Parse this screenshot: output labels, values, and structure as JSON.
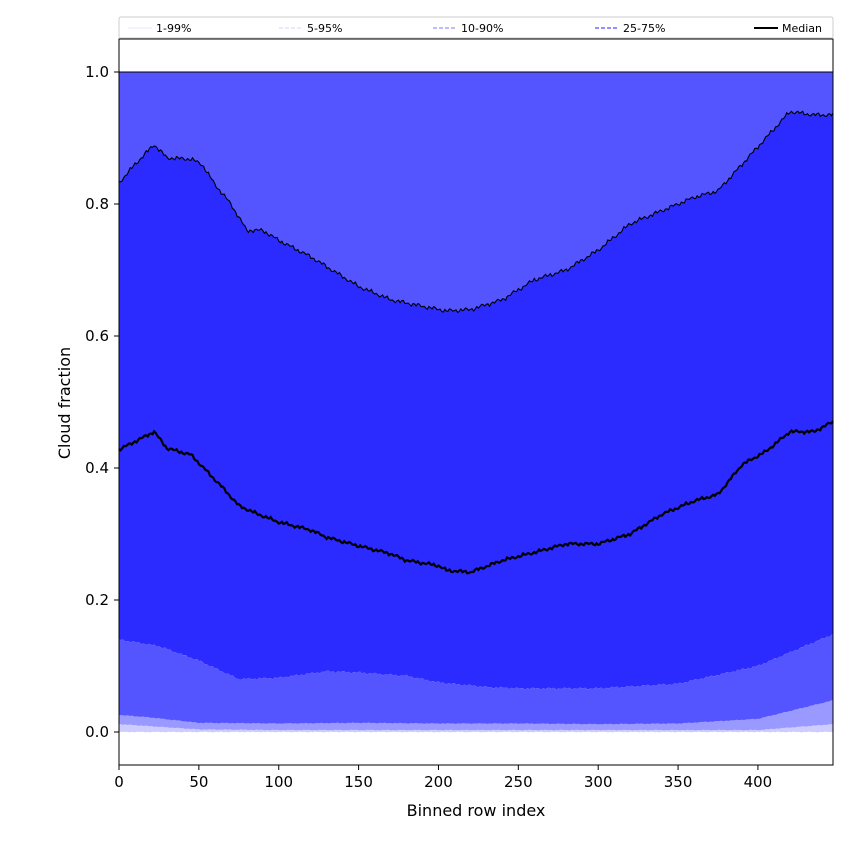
{
  "chart_data": {
    "type": "area",
    "xlabel": "Binned row index",
    "ylabel": "Cloud fraction",
    "xlim": [
      0,
      447
    ],
    "ylim": [
      -0.05,
      1.05
    ],
    "xticks": [
      0,
      50,
      100,
      150,
      200,
      250,
      300,
      350,
      400
    ],
    "yticks": [
      0.0,
      0.2,
      0.4,
      0.6,
      0.8,
      1.0
    ],
    "xtick_labels": [
      "0",
      "50",
      "100",
      "150",
      "200",
      "250",
      "300",
      "350",
      "400"
    ],
    "ytick_labels": [
      "0.0",
      "0.2",
      "0.4",
      "0.6",
      "0.8",
      "1.0"
    ],
    "grid": false,
    "legend_position": "top",
    "legend": [
      {
        "label": "1-99%",
        "color": "#d4d4ff",
        "style": "solid",
        "width": 0.6
      },
      {
        "label": "5-95%",
        "color": "#a8a8ff",
        "style": "dashed",
        "width": 0.6
      },
      {
        "label": "10-90%",
        "color": "#7a7aff",
        "style": "dashed",
        "width": 1.0
      },
      {
        "label": "25-75%",
        "color": "#4d4dff",
        "style": "dashed",
        "width": 1.2
      },
      {
        "label": "Median",
        "color": "#000000",
        "style": "solid",
        "width": 2.0
      }
    ],
    "bands": [
      {
        "name": "1-99%",
        "color": "#ccccff",
        "lower": {
          "x": [
            0,
            447
          ],
          "y": [
            0.0,
            0.0
          ]
        },
        "upper": {
          "x": [
            0,
            50,
            100,
            150,
            200,
            250,
            300,
            350,
            400,
            447
          ],
          "y": [
            0.027,
            0.016,
            0.014,
            0.014,
            0.012,
            0.011,
            0.012,
            0.013,
            0.025,
            0.055
          ]
        }
      },
      {
        "name": "5-95%",
        "color": "#9999ff",
        "lower": {
          "x": [
            0,
            50,
            100,
            150,
            200,
            250,
            300,
            350,
            400,
            447
          ],
          "y": [
            0.012,
            0.004,
            0.003,
            0.003,
            0.003,
            0.003,
            0.003,
            0.003,
            0.003,
            0.012
          ]
        },
        "upper": {
          "x": [
            0,
            20,
            50,
            100,
            150,
            200,
            250,
            300,
            350,
            400,
            447
          ],
          "y": [
            0.052,
            0.05,
            0.028,
            0.026,
            0.028,
            0.025,
            0.022,
            0.021,
            0.022,
            0.032,
            0.055
          ]
        }
      },
      {
        "name": "10-90%",
        "color": "#5555ff",
        "lower": {
          "x": [
            0,
            20,
            50,
            100,
            150,
            200,
            250,
            300,
            350,
            400,
            447
          ],
          "y": [
            0.026,
            0.022,
            0.014,
            0.013,
            0.014,
            0.013,
            0.013,
            0.012,
            0.013,
            0.02,
            0.048
          ]
        },
        "upper": {
          "x": [
            0,
            25,
            50,
            75,
            100,
            130,
            150,
            180,
            200,
            230,
            250,
            300,
            350,
            400,
            447
          ],
          "y": [
            0.14,
            0.13,
            0.108,
            0.08,
            0.082,
            0.092,
            0.09,
            0.085,
            0.075,
            0.068,
            0.066,
            0.066,
            0.073,
            0.1,
            0.148
          ]
        }
      },
      {
        "name": "25-75%",
        "color": "#5555ff",
        "lower": {
          "x": [
            0,
            447
          ],
          "y": [
            0.99,
            0.99
          ]
        },
        "upper": {
          "x": [
            0,
            447
          ],
          "y": [
            1.0,
            1.0
          ]
        }
      }
    ],
    "series": [
      {
        "name": "25-75%",
        "color": "#000000",
        "x": [
          0,
          10,
          22,
          30,
          45,
          52,
          60,
          70,
          80,
          90,
          100,
          120,
          130,
          150,
          170,
          190,
          205,
          220,
          240,
          260,
          280,
          300,
          320,
          340,
          360,
          375,
          390,
          405,
          420,
          435,
          447
        ],
        "y": [
          0.832,
          0.86,
          0.89,
          0.87,
          0.868,
          0.86,
          0.83,
          0.8,
          0.76,
          0.76,
          0.745,
          0.72,
          0.705,
          0.675,
          0.655,
          0.645,
          0.638,
          0.64,
          0.655,
          0.685,
          0.7,
          0.73,
          0.77,
          0.79,
          0.81,
          0.82,
          0.86,
          0.9,
          0.94,
          0.935,
          0.935
        ]
      },
      {
        "name": "Median",
        "color": "#000000",
        "x": [
          0,
          10,
          22,
          30,
          45,
          55,
          65,
          75,
          85,
          100,
          120,
          130,
          150,
          170,
          180,
          200,
          205,
          220,
          240,
          260,
          280,
          300,
          320,
          340,
          360,
          375,
          390,
          405,
          420,
          435,
          447
        ],
        "y": [
          0.428,
          0.44,
          0.455,
          0.43,
          0.42,
          0.395,
          0.37,
          0.343,
          0.332,
          0.318,
          0.306,
          0.295,
          0.282,
          0.27,
          0.26,
          0.252,
          0.245,
          0.242,
          0.26,
          0.272,
          0.285,
          0.285,
          0.3,
          0.33,
          0.35,
          0.36,
          0.405,
          0.425,
          0.455,
          0.455,
          0.47
        ]
      }
    ]
  }
}
